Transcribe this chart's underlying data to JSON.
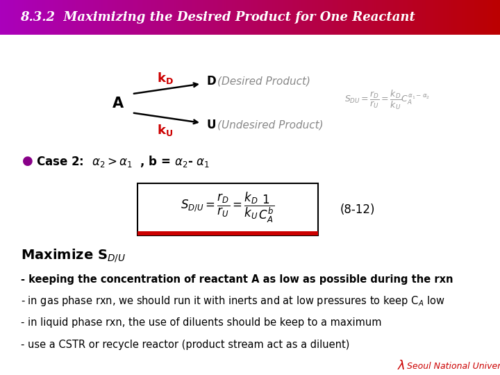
{
  "title": "8.3.2  Maximizing the Desired Product for One Reactant",
  "title_text_color": "#ffffff",
  "body_bg_color": "#ffffff",
  "red_color": "#cc0000",
  "purple_color": "#880088",
  "snu_color": "#cc0000",
  "snu_text": "Seoul National University",
  "eq_number": "(8-12)",
  "bullet1": "- keeping the concentration of reactant A as low as possible during the rxn",
  "bullet2": "- in gas phase rxn, we should run it with inerts and at low pressures to keep C$_A$ low",
  "bullet3": "- in liquid phase rxn, the use of diluents should be keep to a maximum",
  "bullet4": "- use a CSTR or recycle reactor (product stream act as a diluent)"
}
